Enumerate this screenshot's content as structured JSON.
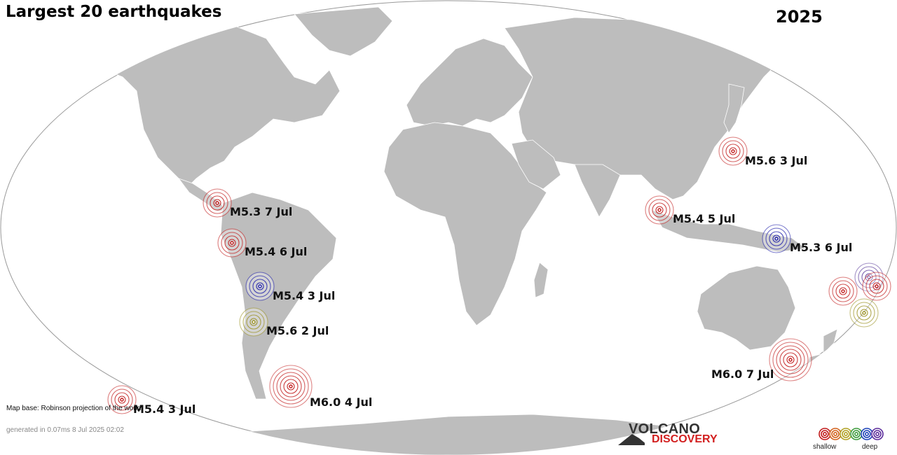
{
  "header": {
    "title": "Largest 20 earthquakes",
    "year": "2025"
  },
  "colors": {
    "land": "#bdbdbd",
    "ocean": "#ffffff",
    "shallow": "#c01818",
    "deep": "#1a1aa8",
    "intermediate": "#9a9020",
    "purple": "#5a3a9a"
  },
  "earthquakes": [
    {
      "label": "M5.6  3 Jul",
      "depth": "shallow"
    },
    {
      "label": "M5.3  7 Jul",
      "depth": "shallow"
    },
    {
      "label": "M5.4  5 Jul",
      "depth": "shallow"
    },
    {
      "label": "M5.4  6 Jul",
      "depth": "shallow"
    },
    {
      "label": "M5.3  6 Jul",
      "depth": "deep"
    },
    {
      "label": "M5.4  3 Jul",
      "depth": "deep"
    },
    {
      "label": "M5.6  2 Jul",
      "depth": "intermediate"
    },
    {
      "label": "M6.0  7 Jul",
      "depth": "shallow"
    },
    {
      "label": "M6.0  4 Jul",
      "depth": "shallow"
    },
    {
      "label": "M5.4  3 Jul",
      "depth": "shallow"
    }
  ],
  "footer": {
    "map_base": "Map base: Robinson projection of the world",
    "generated": "generated in 0.07ms  8 Jul 2025 02:02"
  },
  "logo": {
    "line1": "VOLCANO",
    "line2": "DISCOVERY"
  },
  "legend": {
    "shallow_label": "shallow",
    "deep_label": "deep",
    "colors": [
      "#c01818",
      "#d2601a",
      "#b0a020",
      "#3a9a3a",
      "#1a40b8",
      "#5a2a9a"
    ]
  }
}
